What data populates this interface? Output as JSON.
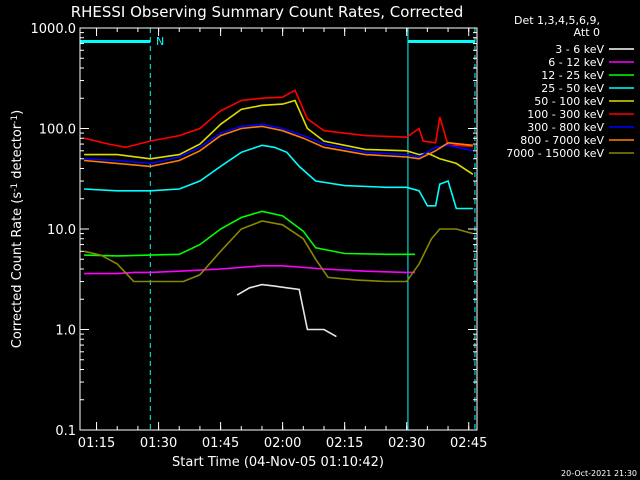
{
  "chart_data": {
    "type": "line",
    "title": "RHESSI Observing Summary Count Rates, Corrected",
    "xlabel": "Start Time (04-Nov-05 01:10:42)",
    "ylabel_main": "Corrected Count Rate (s",
    "ylabel_sup1": "-1",
    "ylabel_mid": " detector",
    "ylabel_sup2": "-1",
    "ylabel_end": ")",
    "y_scale": "log",
    "ylim": [
      0.1,
      1000
    ],
    "xlim_minutes": [
      71.0,
      167.0
    ],
    "x_ticks": [
      {
        "m": 75,
        "label": "01:15"
      },
      {
        "m": 90,
        "label": "01:30"
      },
      {
        "m": 105,
        "label": "01:45"
      },
      {
        "m": 120,
        "label": "02:00"
      },
      {
        "m": 135,
        "label": "02:15"
      },
      {
        "m": 150,
        "label": "02:30"
      },
      {
        "m": 165,
        "label": "02:45"
      }
    ],
    "y_ticks": [
      {
        "v": 0.1,
        "label": "0.1"
      },
      {
        "v": 1,
        "label": "1.0"
      },
      {
        "v": 10,
        "label": "10.0"
      },
      {
        "v": 100,
        "label": "100.0"
      },
      {
        "v": 1000,
        "label": "1000.0"
      }
    ],
    "legend_header": [
      "Det 1,3,4,5,6,9,",
      "Att 0"
    ],
    "legend_position": "right",
    "n_marker": "N",
    "night_bars": [
      [
        71.0,
        88.0
      ],
      [
        150.3,
        166.5
      ]
    ],
    "vlines_solid": [
      71.0,
      150.3
    ],
    "vlines_dashed": [
      88.0,
      166.5
    ],
    "series": [
      {
        "name": "3 - 6 keV",
        "color": "#000000",
        "points": [
          [
            109,
            2.2
          ],
          [
            112,
            2.6
          ],
          [
            115,
            2.8
          ],
          [
            118,
            2.7
          ],
          [
            121,
            2.6
          ],
          [
            124,
            2.5
          ],
          [
            126,
            1.0
          ],
          [
            130,
            1.0
          ],
          [
            133,
            0.85
          ]
        ]
      },
      {
        "name": "6 - 12 keV",
        "color": "#ff00ff",
        "points": [
          [
            72,
            3.6
          ],
          [
            76,
            3.6
          ],
          [
            80,
            3.6
          ],
          [
            84,
            3.7
          ],
          [
            88,
            3.7
          ],
          [
            95,
            3.8
          ],
          [
            105,
            4.0
          ],
          [
            115,
            4.3
          ],
          [
            120,
            4.3
          ],
          [
            130,
            4.0
          ],
          [
            140,
            3.8
          ],
          [
            150,
            3.7
          ],
          [
            152,
            3.7
          ]
        ]
      },
      {
        "name": "12 - 25 keV",
        "color": "#00ff00",
        "points": [
          [
            72,
            5.5
          ],
          [
            80,
            5.4
          ],
          [
            88,
            5.5
          ],
          [
            95,
            5.6
          ],
          [
            100,
            7.0
          ],
          [
            105,
            10.0
          ],
          [
            110,
            13.0
          ],
          [
            115,
            15.0
          ],
          [
            120,
            13.5
          ],
          [
            125,
            9.5
          ],
          [
            128,
            6.5
          ],
          [
            135,
            5.7
          ],
          [
            145,
            5.6
          ],
          [
            152,
            5.6
          ]
        ]
      },
      {
        "name": "25 - 50 keV",
        "color": "#00ffff",
        "points": [
          [
            72,
            25
          ],
          [
            80,
            24
          ],
          [
            88,
            24
          ],
          [
            95,
            25
          ],
          [
            100,
            30
          ],
          [
            105,
            42
          ],
          [
            110,
            58
          ],
          [
            115,
            68
          ],
          [
            118,
            65
          ],
          [
            121,
            58
          ],
          [
            124,
            42
          ],
          [
            128,
            30
          ],
          [
            135,
            27
          ],
          [
            145,
            26
          ],
          [
            150,
            26
          ],
          [
            153,
            24
          ],
          [
            155,
            17
          ],
          [
            157,
            17
          ],
          [
            158,
            28
          ],
          [
            160,
            30
          ],
          [
            162,
            16
          ],
          [
            166,
            16
          ]
        ]
      },
      {
        "name": "50 - 100 keV",
        "color": "#dddd00",
        "points": [
          [
            72,
            55
          ],
          [
            80,
            55
          ],
          [
            88,
            50
          ],
          [
            95,
            55
          ],
          [
            100,
            70
          ],
          [
            105,
            110
          ],
          [
            110,
            155
          ],
          [
            115,
            170
          ],
          [
            120,
            175
          ],
          [
            123,
            190
          ],
          [
            126,
            100
          ],
          [
            130,
            75
          ],
          [
            140,
            62
          ],
          [
            150,
            60
          ],
          [
            153,
            55
          ],
          [
            155,
            57
          ],
          [
            158,
            50
          ],
          [
            162,
            45
          ],
          [
            166,
            35
          ]
        ]
      },
      {
        "name": "100 - 300 keV",
        "color": "#ff0000",
        "points": [
          [
            72,
            80
          ],
          [
            78,
            70
          ],
          [
            82,
            65
          ],
          [
            88,
            75
          ],
          [
            95,
            85
          ],
          [
            100,
            100
          ],
          [
            105,
            150
          ],
          [
            110,
            190
          ],
          [
            115,
            200
          ],
          [
            120,
            205
          ],
          [
            123,
            240
          ],
          [
            126,
            125
          ],
          [
            130,
            95
          ],
          [
            140,
            85
          ],
          [
            150,
            82
          ],
          [
            153,
            100
          ],
          [
            154,
            75
          ],
          [
            157,
            72
          ],
          [
            158,
            130
          ],
          [
            160,
            68
          ],
          [
            162,
            68
          ],
          [
            166,
            66
          ]
        ]
      },
      {
        "name": "300 - 800 keV",
        "color": "#0000ff",
        "points": [
          [
            72,
            50
          ],
          [
            80,
            48
          ],
          [
            88,
            45
          ],
          [
            95,
            52
          ],
          [
            100,
            65
          ],
          [
            105,
            90
          ],
          [
            110,
            105
          ],
          [
            115,
            110
          ],
          [
            120,
            100
          ],
          [
            125,
            85
          ],
          [
            130,
            70
          ],
          [
            140,
            58
          ],
          [
            150,
            55
          ],
          [
            153,
            52
          ],
          [
            157,
            65
          ],
          [
            160,
            68
          ],
          [
            166,
            60
          ]
        ]
      },
      {
        "name": "800 - 7000 keV",
        "color": "#ff8000",
        "points": [
          [
            72,
            48
          ],
          [
            80,
            45
          ],
          [
            88,
            42
          ],
          [
            95,
            48
          ],
          [
            100,
            60
          ],
          [
            105,
            85
          ],
          [
            110,
            100
          ],
          [
            115,
            105
          ],
          [
            120,
            95
          ],
          [
            125,
            80
          ],
          [
            130,
            65
          ],
          [
            140,
            55
          ],
          [
            150,
            52
          ],
          [
            153,
            50
          ],
          [
            157,
            60
          ],
          [
            160,
            72
          ],
          [
            166,
            68
          ]
        ]
      },
      {
        "name": "7000 - 15000 keV",
        "color": "#888800",
        "points": [
          [
            72,
            6.0
          ],
          [
            76,
            5.5
          ],
          [
            80,
            4.5
          ],
          [
            84,
            3.0
          ],
          [
            88,
            3.0
          ],
          [
            92,
            3.0
          ],
          [
            96,
            3.0
          ],
          [
            100,
            3.5
          ],
          [
            105,
            6.0
          ],
          [
            110,
            10.0
          ],
          [
            115,
            12.0
          ],
          [
            120,
            11.0
          ],
          [
            125,
            8.0
          ],
          [
            128,
            5.0
          ],
          [
            131,
            3.3
          ],
          [
            138,
            3.1
          ],
          [
            145,
            3.0
          ],
          [
            150,
            3.0
          ],
          [
            153,
            4.5
          ],
          [
            156,
            8.0
          ],
          [
            158,
            10.0
          ],
          [
            162,
            10.0
          ],
          [
            166,
            9.0
          ]
        ]
      }
    ],
    "timestamp": "20-Oct-2021 21:30"
  }
}
